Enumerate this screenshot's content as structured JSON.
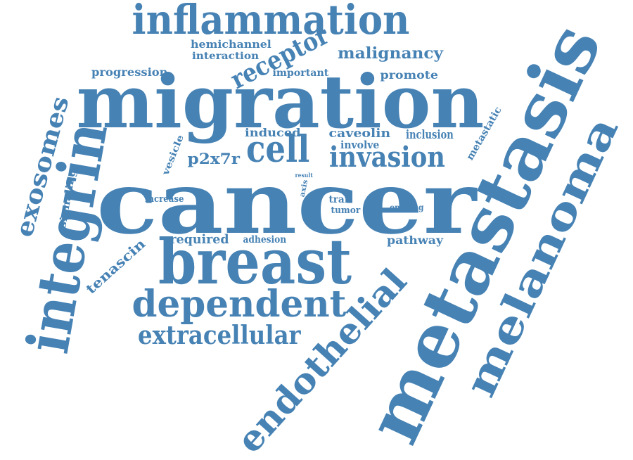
{
  "style": {
    "word_color": "#4682b4",
    "background": "#ffffff"
  },
  "words": [
    "inflammation",
    "migration",
    "cancer",
    "breast",
    "metastasis",
    "melanoma",
    "integrin",
    "endothelial",
    "dependent",
    "extracellular",
    "cell",
    "invasion",
    "receptor",
    "exosomes",
    "malignancy",
    "hemichannel",
    "interaction",
    "progression",
    "important",
    "promote",
    "induced",
    "caveolin",
    "inclusion",
    "involve",
    "metastatic",
    "vesicle",
    "p2x7r",
    "signaling",
    "result",
    "axis",
    "increase",
    "tran",
    "tumor",
    "opening",
    "tenascin",
    "required",
    "adhesion",
    "pathway"
  ]
}
